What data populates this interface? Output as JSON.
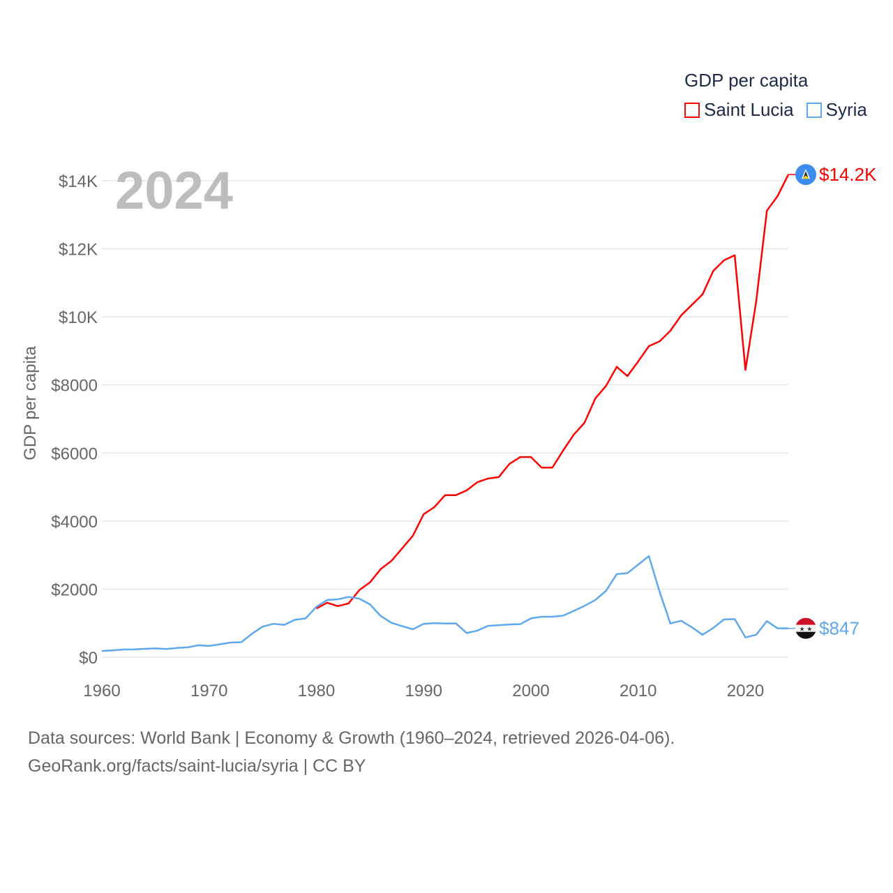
{
  "legend": {
    "title": "GDP per capita",
    "entries": [
      {
        "label": "Saint Lucia",
        "color": "#ff0000"
      },
      {
        "label": "Syria",
        "color": "#5ea8ee"
      }
    ]
  },
  "year_label": "2024",
  "footer": {
    "line1": "Data sources: World Bank | Economy & Growth (1960–2024, retrieved 2026-04-06).",
    "line2": "GeoRank.org/facts/saint-lucia/syria | CC BY"
  },
  "chart_data": {
    "type": "line",
    "title": "",
    "xlabel": "",
    "ylabel": "GDP per capita",
    "xlim": [
      1960,
      2024
    ],
    "ylim": [
      0,
      14200
    ],
    "grid": true,
    "legend_position": "top-right",
    "x_ticks": [
      1960,
      1970,
      1980,
      1990,
      2000,
      2010,
      2020
    ],
    "x_tick_labels": [
      "1960",
      "1970",
      "1980",
      "1990",
      "2000",
      "2010",
      "2020"
    ],
    "y_ticks": [
      0,
      2000,
      4000,
      6000,
      8000,
      10000,
      12000,
      14000
    ],
    "y_tick_labels": [
      "$0",
      "$2000",
      "$4000",
      "$6000",
      "$8000",
      "$10K",
      "$12K",
      "$14K"
    ],
    "series": [
      {
        "name": "Saint Lucia",
        "color": "#ff0000",
        "end_label": "$14.2K",
        "x_start": 1980,
        "values": [
          1430,
          1600,
          1500,
          1580,
          1970,
          2200,
          2590,
          2830,
          3200,
          3570,
          4200,
          4410,
          4760,
          4760,
          4900,
          5140,
          5250,
          5290,
          5680,
          5880,
          5880,
          5570,
          5570,
          6070,
          6540,
          6890,
          7600,
          7970,
          8530,
          8260,
          8690,
          9140,
          9280,
          9590,
          10040,
          10350,
          10660,
          11350,
          11660,
          11810,
          8440,
          10450,
          13120,
          13550,
          14180
        ]
      },
      {
        "name": "Syria",
        "color": "#5ea8ee",
        "end_label": "$847",
        "x_start": 1960,
        "values": [
          185,
          200,
          225,
          230,
          245,
          260,
          240,
          270,
          290,
          350,
          330,
          380,
          430,
          440,
          690,
          900,
          980,
          950,
          1100,
          1140,
          1480,
          1680,
          1700,
          1770,
          1720,
          1550,
          1210,
          1010,
          910,
          820,
          980,
          1000,
          990,
          995,
          710,
          780,
          920,
          940,
          960,
          970,
          1140,
          1190,
          1190,
          1220,
          1360,
          1510,
          1680,
          1950,
          2440,
          2470,
          2720,
          2970,
          1920,
          990,
          1070,
          880,
          660,
          860,
          1110,
          1120,
          580,
          660,
          1060,
          847,
          847
        ]
      }
    ]
  }
}
